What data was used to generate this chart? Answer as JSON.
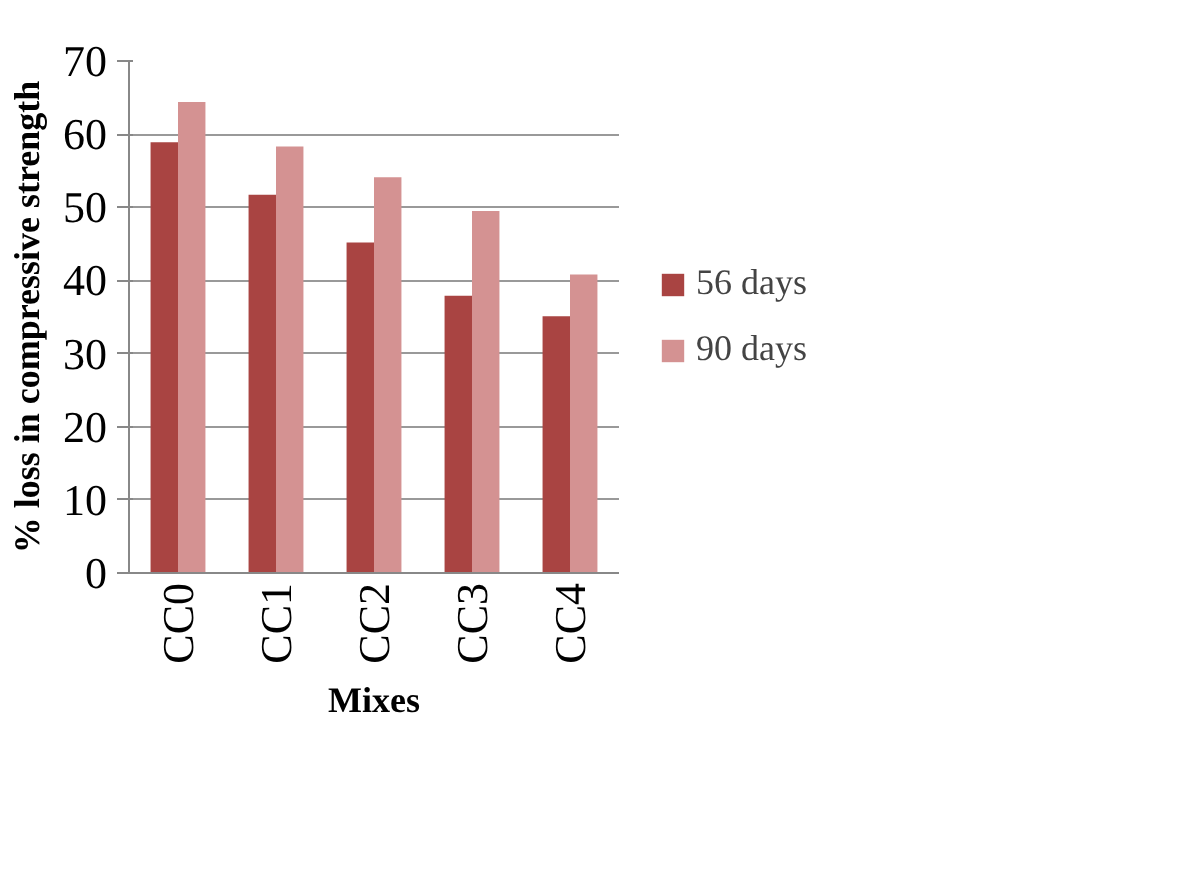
{
  "chart_data": {
    "type": "bar",
    "xlabel": "Mixes",
    "ylabel": "% loss in compressive strength",
    "categories": [
      "CC0",
      "CC1",
      "CC2",
      "CC3",
      "CC4"
    ],
    "series": [
      {
        "name": "56 days",
        "color": "#a94442",
        "values": [
          58.9,
          51.7,
          45.2,
          37.9,
          35.1
        ]
      },
      {
        "name": "90 days",
        "color": "#d49292",
        "values": [
          64.4,
          58.3,
          54.1,
          49.5,
          40.8
        ]
      }
    ],
    "ylim": [
      0,
      70
    ],
    "yticks": [
      0,
      10,
      20,
      30,
      40,
      50,
      60,
      70
    ],
    "grid": "y",
    "legend": "right"
  }
}
